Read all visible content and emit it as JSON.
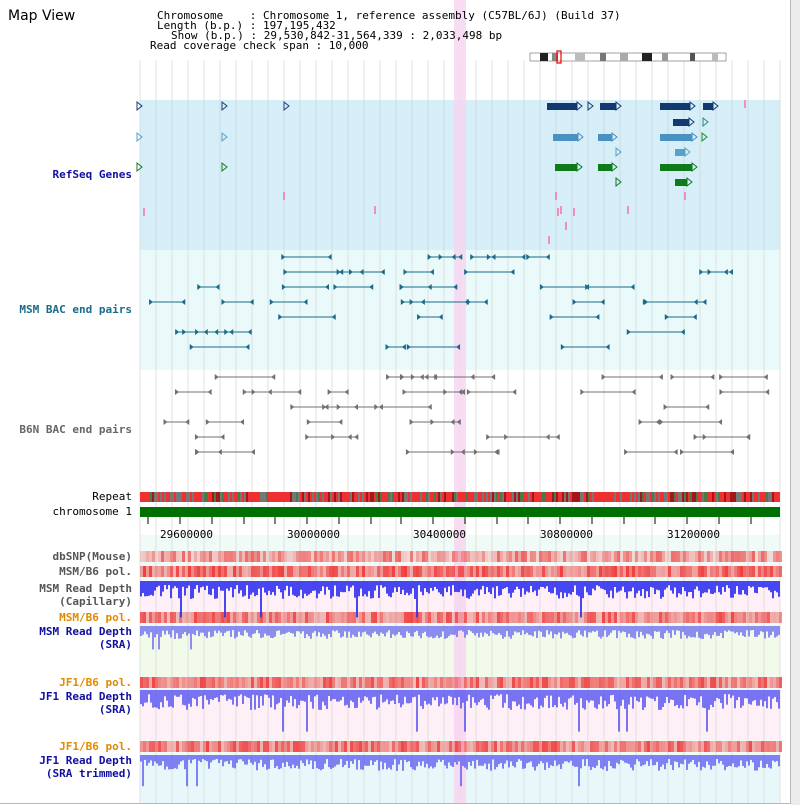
{
  "header": {
    "title": "Map View",
    "chromosome_line": "Chromosome    : Chromosome 1, reference assembly (C57BL/6J) (Build 37)",
    "length_line": "Length (b.p.) : 197,195,432",
    "show_line": "Show (b.p.) : 29,530,842-31,564,339 : 2,033,498 bp",
    "coverage_line": "Read coverage check span : 10,000"
  },
  "tracks": {
    "refseq": "RefSeq Genes",
    "msm_bac": "MSM BAC end pairs",
    "b6n_bac": "B6N BAC end pairs",
    "repeat": "Repeat",
    "chromosome": "chromosome 1",
    "dbsnp": "dbSNP(Mouse)",
    "msm_b6_pol": "MSM/B6 pol.",
    "msm_depth_cap": "MSM Read Depth",
    "msm_depth_cap2": "(Capillary)",
    "msm_b6_pol2": "MSM/B6 pol.",
    "msm_depth_sra": "MSM Read Depth",
    "msm_depth_sra2": "(SRA)",
    "jf1_b6_pol": "JF1/B6 pol.",
    "jf1_depth_sra": "JF1 Read Depth",
    "jf1_depth_sra2": "(SRA)",
    "jf1_b6_pol2": "JF1/B6 pol.",
    "jf1_depth_trim": "JF1 Read Depth",
    "jf1_depth_trim2": "(SRA trimmed)"
  },
  "axis": {
    "ticks": [
      "29600000",
      "30000000",
      "30400000",
      "30800000",
      "31200000"
    ]
  },
  "colors": {
    "refseq_bg": "#d6eef8",
    "bac_bg": "#eafafa",
    "highlight": "#f6d6f0",
    "chromosome": "#007000",
    "depth_blue": "#3333ee",
    "pol_red": "#ee3333"
  }
}
